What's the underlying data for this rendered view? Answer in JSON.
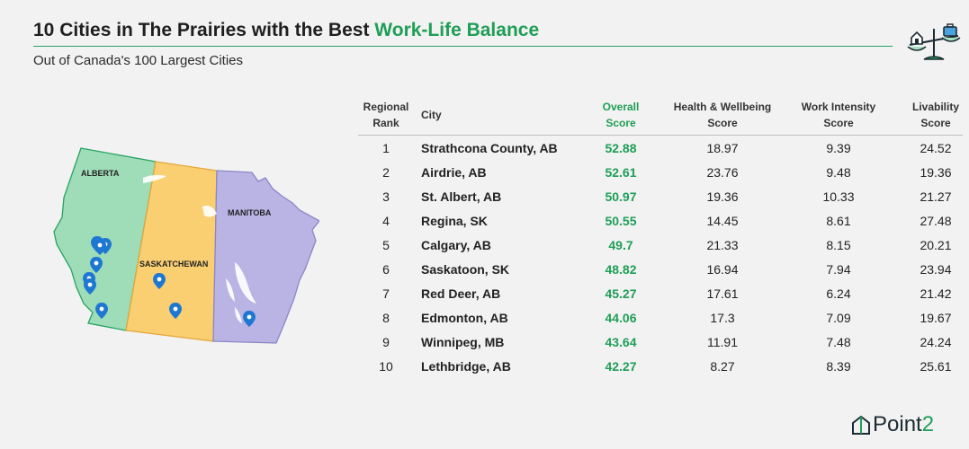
{
  "header": {
    "title_prefix": "10 Cities in The Prairies with the Best ",
    "title_highlight": "Work-Life Balance",
    "subtitle": "Out of Canada's 100 Largest Cities"
  },
  "map": {
    "provinces": [
      {
        "name": "ALBERTA",
        "color": "#9fdcb8"
      },
      {
        "name": "SASKATCHEWAN",
        "color": "#f9cf72"
      },
      {
        "name": "MANITOBA",
        "color": "#b9b4e4"
      }
    ],
    "marker_icon": "location-pin-icon"
  },
  "table": {
    "columns": {
      "rank": [
        "Regional",
        "Rank"
      ],
      "city": "City",
      "overall": [
        "Overall",
        "Score"
      ],
      "health": [
        "Health & Wellbeing",
        "Score"
      ],
      "work": [
        "Work Intensity",
        "Score"
      ],
      "livability": [
        "Livability",
        "Score"
      ]
    },
    "rows": [
      {
        "rank": "1",
        "city": "Strathcona County, AB",
        "overall": "52.88",
        "health": "18.97",
        "work": "9.39",
        "livability": "24.52"
      },
      {
        "rank": "2",
        "city": "Airdrie, AB",
        "overall": "52.61",
        "health": "23.76",
        "work": "9.48",
        "livability": "19.36"
      },
      {
        "rank": "3",
        "city": "St. Albert, AB",
        "overall": "50.97",
        "health": "19.36",
        "work": "10.33",
        "livability": "21.27"
      },
      {
        "rank": "4",
        "city": "Regina, SK",
        "overall": "50.55",
        "health": "14.45",
        "work": "8.61",
        "livability": "27.48"
      },
      {
        "rank": "5",
        "city": "Calgary, AB",
        "overall": "49.7",
        "health": "21.33",
        "work": "8.15",
        "livability": "20.21"
      },
      {
        "rank": "6",
        "city": "Saskatoon, SK",
        "overall": "48.82",
        "health": "16.94",
        "work": "7.94",
        "livability": "23.94"
      },
      {
        "rank": "7",
        "city": "Red Deer, AB",
        "overall": "45.27",
        "health": "17.61",
        "work": "6.24",
        "livability": "21.42"
      },
      {
        "rank": "8",
        "city": "Edmonton, AB",
        "overall": "44.06",
        "health": "17.3",
        "work": "7.09",
        "livability": "19.67"
      },
      {
        "rank": "9",
        "city": "Winnipeg, MB",
        "overall": "43.64",
        "health": "11.91",
        "work": "7.48",
        "livability": "24.24"
      },
      {
        "rank": "10",
        "city": "Lethbridge, AB",
        "overall": "42.27",
        "health": "8.27",
        "work": "8.39",
        "livability": "25.61"
      }
    ]
  },
  "chart_data": {
    "type": "table",
    "columns": [
      "Regional Rank",
      "City",
      "Overall Score",
      "Health & Wellbeing Score",
      "Work Intensity Score",
      "Livability Score"
    ],
    "rows": [
      [
        1,
        "Strathcona County, AB",
        52.88,
        18.97,
        9.39,
        24.52
      ],
      [
        2,
        "Airdrie, AB",
        52.61,
        23.76,
        9.48,
        19.36
      ],
      [
        3,
        "St. Albert, AB",
        50.97,
        19.36,
        10.33,
        21.27
      ],
      [
        4,
        "Regina, SK",
        50.55,
        14.45,
        8.61,
        27.48
      ],
      [
        5,
        "Calgary, AB",
        49.7,
        21.33,
        8.15,
        20.21
      ],
      [
        6,
        "Saskatoon, SK",
        48.82,
        16.94,
        7.94,
        23.94
      ],
      [
        7,
        "Red Deer, AB",
        45.27,
        17.61,
        6.24,
        21.42
      ],
      [
        8,
        "Edmonton, AB",
        44.06,
        17.3,
        7.09,
        19.67
      ],
      [
        9,
        "Winnipeg, MB",
        43.64,
        11.91,
        7.48,
        24.24
      ],
      [
        10,
        "Lethbridge, AB",
        42.27,
        8.27,
        8.39,
        25.61
      ]
    ],
    "title": "10 Cities in The Prairies with the Best Work-Life Balance",
    "subtitle": "Out of Canada's 100 Largest Cities"
  },
  "brand": {
    "name_main": "Point",
    "name_accent": "2",
    "accent_color": "#1f9e57"
  }
}
